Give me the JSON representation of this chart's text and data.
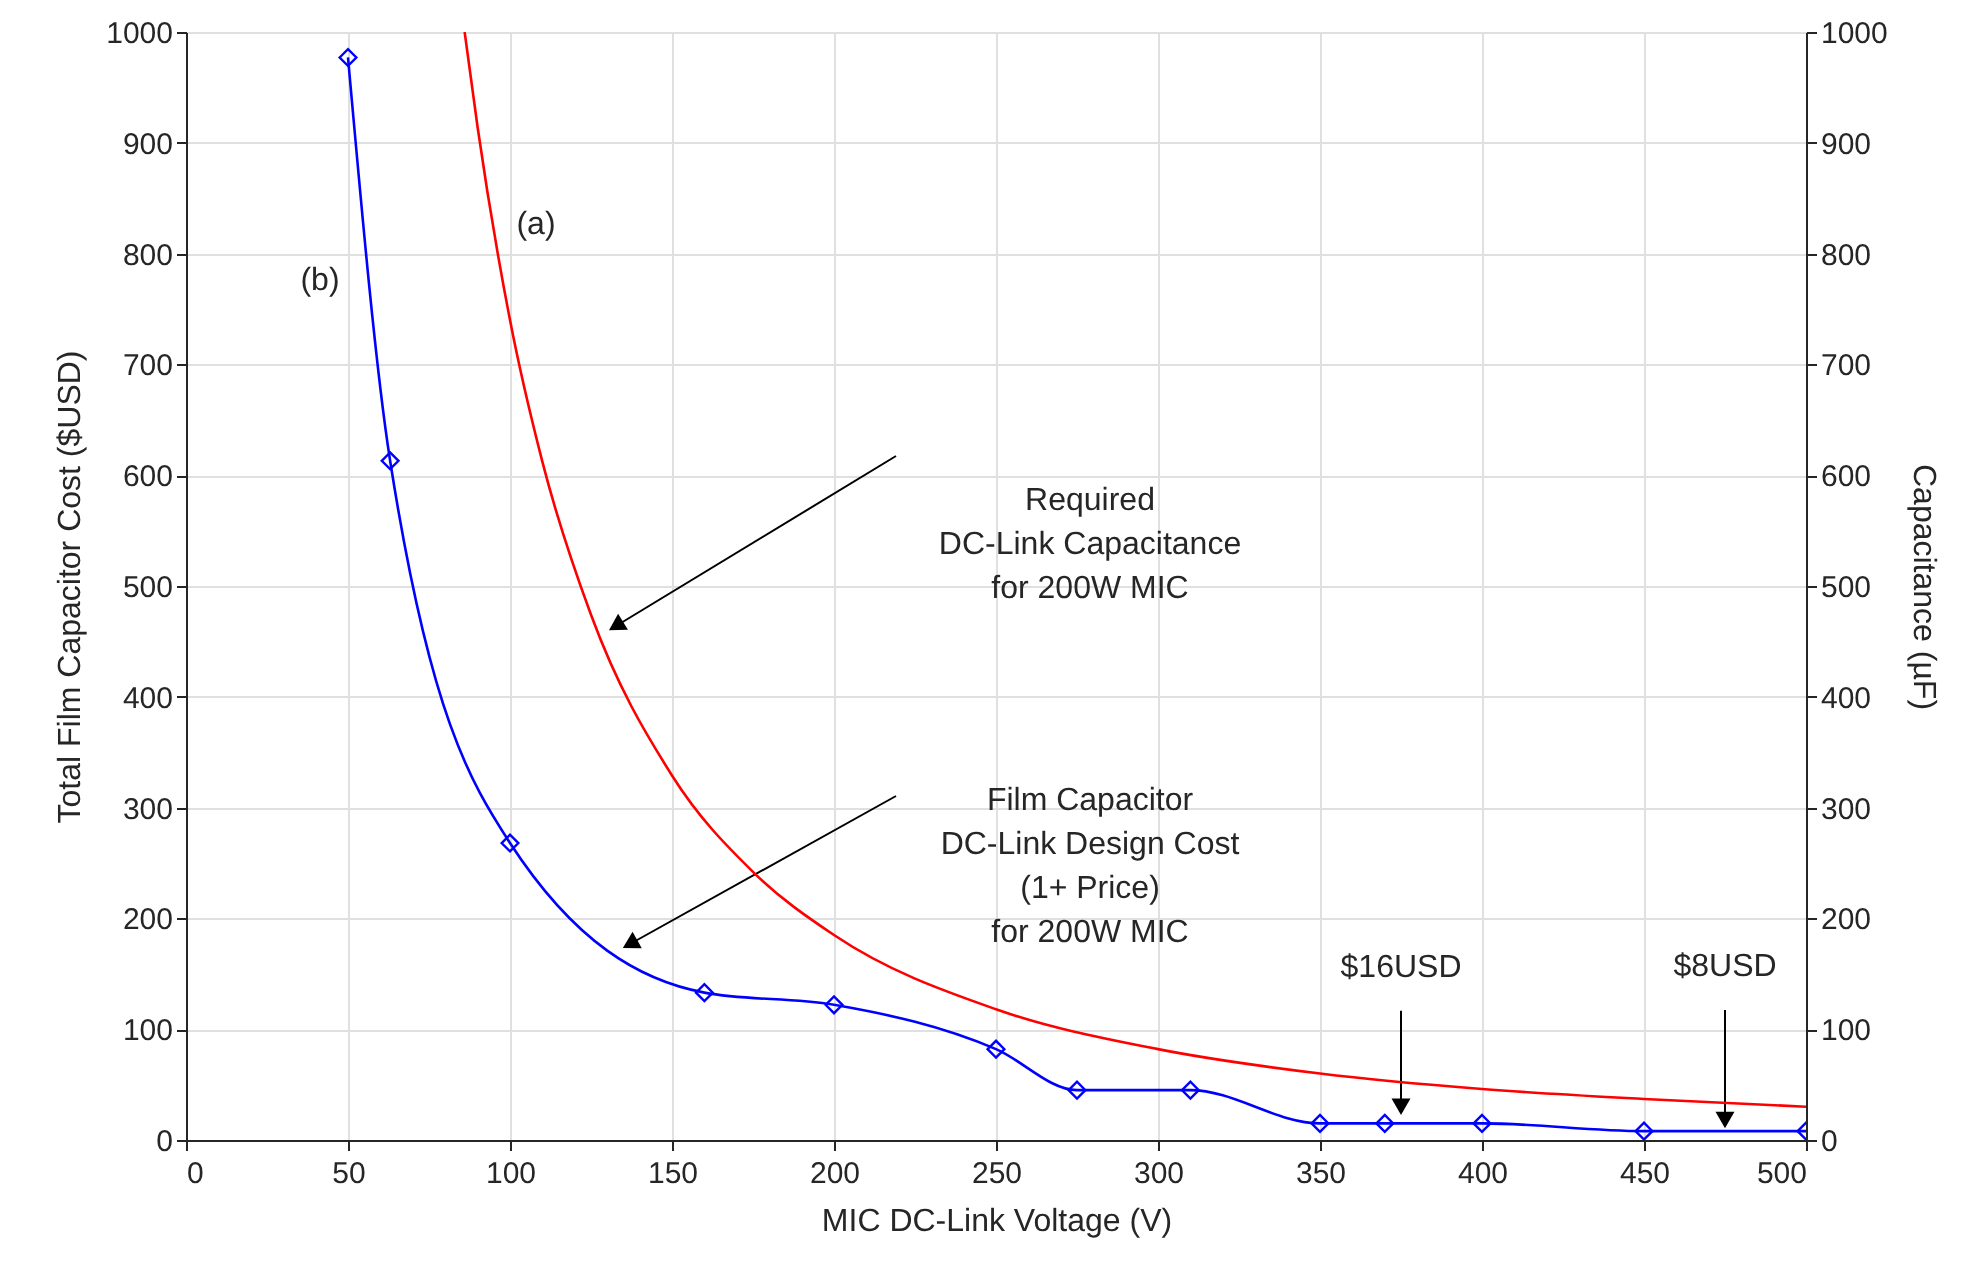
{
  "chart_data": {
    "type": "line",
    "xlabel": "MIC DC-Link Voltage (V)",
    "ylabel": "Total Film Capacitor Cost ($USD)",
    "y2label": "Capacitance (µF)",
    "xlim": [
      0,
      500
    ],
    "xticks": [
      0,
      50,
      100,
      150,
      200,
      250,
      300,
      350,
      400,
      450,
      500
    ],
    "ylim": [
      0,
      1000
    ],
    "yticks": [
      0,
      100,
      200,
      300,
      400,
      500,
      600,
      700,
      800,
      900,
      1000
    ],
    "y2lim": [
      0,
      1000
    ],
    "y2ticks": [
      0,
      100,
      200,
      300,
      400,
      500,
      600,
      700,
      800,
      900,
      1000
    ],
    "grid": true,
    "series": [
      {
        "color": "#0000ff",
        "marker": "diamond",
        "x": [
          50,
          63,
          100,
          160,
          200,
          250,
          275,
          310,
          350,
          370,
          400,
          450,
          500
        ],
        "values": [
          977,
          613,
          268,
          133,
          122,
          82,
          45,
          45,
          15,
          15,
          15,
          8,
          8
        ]
      },
      {
        "color": "#ff0000",
        "marker": "none",
        "axis": "y2",
        "x": [
          86,
          90,
          100,
          110,
          125,
          150,
          175,
          200,
          250,
          300,
          350,
          400,
          450,
          500
        ],
        "values": [
          1000,
          914,
          740,
          612,
          474,
          329,
          242,
          185,
          118,
          82,
          60,
          46,
          37,
          30
        ]
      }
    ],
    "annotations": [
      "Required\nDC-Link Capacitance\nfor 200W MIC",
      "Film Capacitor\nDC-Link Design Cost\n(1+ Price)\nfor 200W MIC",
      {
        "text": "$16USD",
        "x": 375,
        "y": 30
      },
      {
        "text": "$8USD",
        "x": 475,
        "y": 18
      },
      "(a)",
      "(b)"
    ]
  }
}
